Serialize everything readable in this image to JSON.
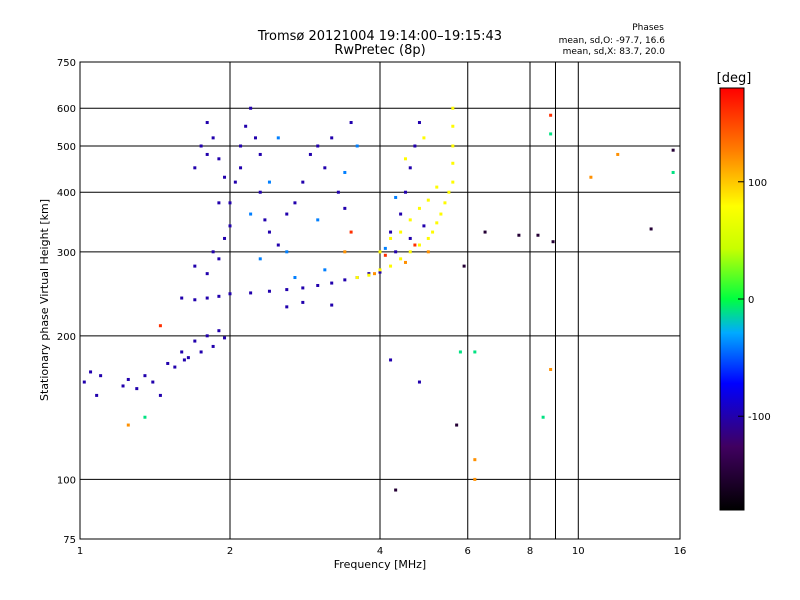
{
  "chart_data": {
    "type": "scatter",
    "title_line1": "Tromsø 20121004 19:14:00–19:15:43",
    "title_line2": "RwPretec (8p)",
    "legend_title": "Phases",
    "legend_line1": "mean, sd,O: -97.7, 16.6",
    "legend_line2": "mean, sd,X: 83.7, 20.0",
    "xlabel": "Frequency [MHz]",
    "ylabel": "Stationary phase Virtual Height [km]",
    "x_scale": "log",
    "y_scale": "log",
    "xlim": [
      1,
      16
    ],
    "ylim": [
      75,
      750
    ],
    "x_ticks": [
      1,
      2,
      4,
      6,
      8,
      10,
      16
    ],
    "y_ticks": [
      75,
      100,
      200,
      300,
      400,
      500,
      600,
      750
    ],
    "grid": true,
    "colorbar": {
      "label": "[deg]",
      "range": [
        -180,
        180
      ],
      "ticks": [
        100,
        0,
        -100
      ]
    },
    "series": [
      {
        "phase": -100,
        "points": [
          [
            1.02,
            160
          ],
          [
            1.05,
            168
          ],
          [
            1.08,
            150
          ],
          [
            1.1,
            165
          ],
          [
            1.22,
            157
          ],
          [
            1.25,
            162
          ],
          [
            1.3,
            155
          ],
          [
            1.35,
            165
          ],
          [
            1.4,
            160
          ],
          [
            1.45,
            150
          ],
          [
            1.5,
            175
          ],
          [
            1.55,
            172
          ],
          [
            1.6,
            185
          ],
          [
            1.62,
            178
          ],
          [
            1.65,
            180
          ],
          [
            1.7,
            195
          ],
          [
            1.75,
            185
          ],
          [
            1.8,
            200
          ],
          [
            1.85,
            190
          ],
          [
            1.9,
            205
          ],
          [
            1.95,
            198
          ],
          [
            1.6,
            240
          ],
          [
            1.7,
            238
          ],
          [
            1.8,
            240
          ],
          [
            1.9,
            242
          ],
          [
            2.0,
            245
          ],
          [
            2.2,
            246
          ],
          [
            2.4,
            248
          ],
          [
            2.6,
            250
          ],
          [
            2.8,
            252
          ],
          [
            3.0,
            255
          ],
          [
            3.2,
            258
          ],
          [
            3.4,
            262
          ],
          [
            3.6,
            265
          ],
          [
            3.8,
            270
          ],
          [
            4.0,
            272
          ],
          [
            1.7,
            280
          ],
          [
            1.8,
            270
          ],
          [
            1.85,
            300
          ],
          [
            1.9,
            290
          ],
          [
            1.95,
            320
          ],
          [
            2.0,
            340
          ],
          [
            2.0,
            380
          ],
          [
            2.05,
            420
          ],
          [
            2.1,
            450
          ],
          [
            2.1,
            500
          ],
          [
            2.15,
            550
          ],
          [
            2.2,
            600
          ],
          [
            2.25,
            520
          ],
          [
            2.3,
            480
          ],
          [
            2.3,
            400
          ],
          [
            2.35,
            350
          ],
          [
            2.4,
            330
          ],
          [
            1.7,
            450
          ],
          [
            1.75,
            500
          ],
          [
            1.8,
            560
          ],
          [
            1.8,
            480
          ],
          [
            1.85,
            520
          ],
          [
            1.9,
            470
          ],
          [
            1.95,
            430
          ],
          [
            1.9,
            380
          ],
          [
            2.5,
            310
          ],
          [
            2.6,
            360
          ],
          [
            2.7,
            380
          ],
          [
            2.8,
            420
          ],
          [
            2.9,
            480
          ],
          [
            3.0,
            500
          ],
          [
            3.1,
            450
          ],
          [
            3.2,
            520
          ],
          [
            3.3,
            400
          ],
          [
            3.4,
            370
          ],
          [
            3.5,
            560
          ],
          [
            4.2,
            330
          ],
          [
            4.4,
            360
          ],
          [
            4.5,
            400
          ],
          [
            4.6,
            450
          ],
          [
            4.7,
            500
          ],
          [
            4.8,
            560
          ],
          [
            4.3,
            300
          ],
          [
            4.6,
            320
          ],
          [
            4.9,
            340
          ],
          [
            2.6,
            230
          ],
          [
            2.8,
            235
          ],
          [
            3.2,
            232
          ],
          [
            4.2,
            178
          ],
          [
            4.8,
            160
          ]
        ]
      },
      {
        "phase": -40,
        "points": [
          [
            2.2,
            360
          ],
          [
            2.3,
            290
          ],
          [
            2.4,
            420
          ],
          [
            2.5,
            520
          ],
          [
            2.6,
            300
          ],
          [
            3.0,
            350
          ],
          [
            3.4,
            440
          ],
          [
            3.6,
            500
          ],
          [
            4.1,
            305
          ],
          [
            4.3,
            390
          ],
          [
            2.7,
            265
          ],
          [
            3.1,
            275
          ]
        ]
      },
      {
        "phase": 80,
        "points": [
          [
            3.6,
            265
          ],
          [
            3.8,
            268
          ],
          [
            4.0,
            275
          ],
          [
            4.2,
            280
          ],
          [
            4.4,
            290
          ],
          [
            4.6,
            300
          ],
          [
            4.8,
            310
          ],
          [
            5.0,
            320
          ],
          [
            5.1,
            330
          ],
          [
            5.2,
            345
          ],
          [
            5.3,
            360
          ],
          [
            5.4,
            380
          ],
          [
            5.5,
            400
          ],
          [
            5.6,
            420
          ],
          [
            5.6,
            460
          ],
          [
            5.6,
            500
          ],
          [
            5.6,
            550
          ],
          [
            5.6,
            600
          ],
          [
            4.4,
            330
          ],
          [
            4.6,
            350
          ],
          [
            4.8,
            370
          ],
          [
            5.0,
            385
          ],
          [
            5.2,
            410
          ],
          [
            4.2,
            320
          ],
          [
            4.0,
            300
          ],
          [
            4.5,
            470
          ],
          [
            4.9,
            520
          ]
        ]
      },
      {
        "phase": 120,
        "points": [
          [
            3.4,
            300
          ],
          [
            3.9,
            270
          ],
          [
            4.5,
            285
          ],
          [
            5.0,
            300
          ],
          [
            6.2,
            100
          ],
          [
            6.2,
            110
          ],
          [
            8.8,
            170
          ],
          [
            10.6,
            430
          ],
          [
            1.25,
            130
          ],
          [
            12.0,
            480
          ]
        ]
      },
      {
        "phase": 160,
        "points": [
          [
            4.7,
            310
          ],
          [
            4.1,
            295
          ],
          [
            3.5,
            330
          ],
          [
            8.8,
            580
          ],
          [
            1.45,
            210
          ]
        ]
      },
      {
        "phase": -150,
        "points": [
          [
            4.3,
            95
          ],
          [
            5.9,
            280
          ],
          [
            6.5,
            330
          ],
          [
            7.6,
            325
          ],
          [
            8.3,
            325
          ],
          [
            8.9,
            315
          ],
          [
            14.0,
            335
          ],
          [
            15.5,
            490
          ],
          [
            5.7,
            130
          ]
        ]
      },
      {
        "phase": -10,
        "points": [
          [
            5.8,
            185
          ],
          [
            6.2,
            185
          ],
          [
            8.5,
            135
          ],
          [
            15.5,
            440
          ],
          [
            1.35,
            135
          ],
          [
            8.8,
            530
          ]
        ]
      }
    ]
  }
}
